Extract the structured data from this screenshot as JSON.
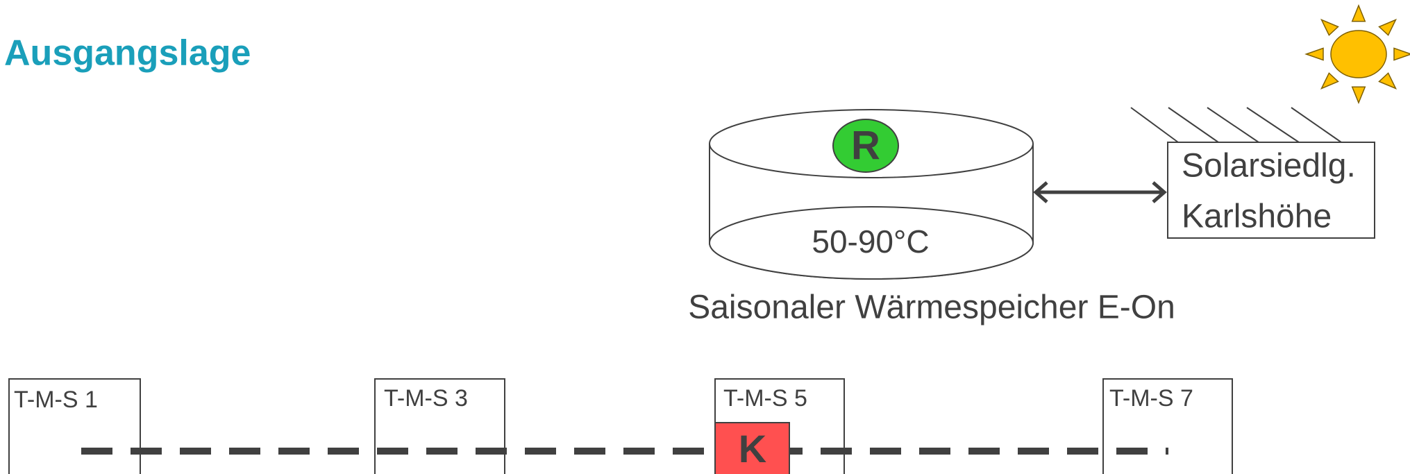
{
  "header": {
    "title": "Ausgangslage"
  },
  "storage": {
    "marker": "R",
    "temperature": "50-90°C",
    "caption": "Saisonaler Wärmespeicher E-On"
  },
  "settlement": {
    "line1": "Solarsiedlg.",
    "line2": "Karlshöhe"
  },
  "stations": [
    {
      "label": "T-M-S 1"
    },
    {
      "label": "T-M-S 3"
    },
    {
      "label": "T-M-S 5"
    },
    {
      "label": "T-M-S 7"
    }
  ],
  "consumer": {
    "label": "K"
  }
}
